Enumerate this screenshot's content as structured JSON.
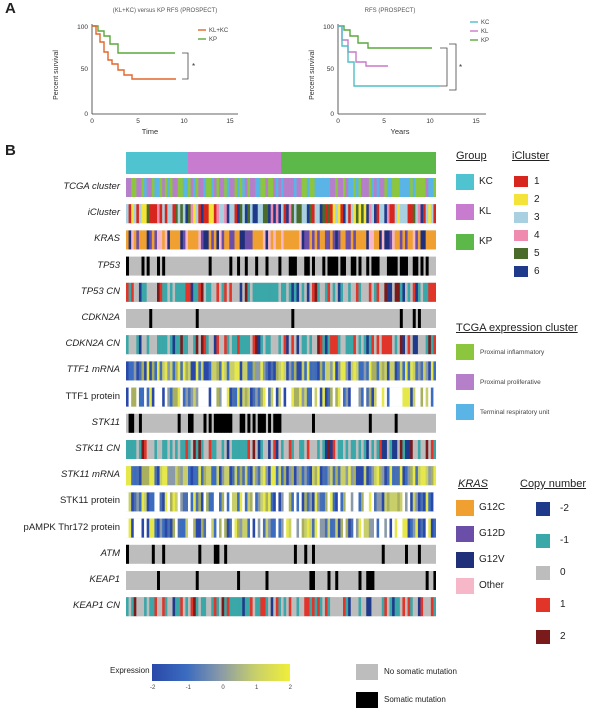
{
  "panel_a": {
    "letter": "A",
    "plot1": {
      "title": "(KL+KC) versus KP RFS (PROSPECT)",
      "ylabel": "Percent survival",
      "xlabel": "Time",
      "yticks": [
        "100",
        "50",
        "0"
      ],
      "xticks": [
        "0",
        "5",
        "10",
        "15"
      ],
      "legend": [
        "KL+KC",
        "KP"
      ],
      "sig": "*",
      "colors": {
        "KLKC": "#e2662a",
        "KP": "#5aa83e"
      }
    },
    "plot2": {
      "title": "RFS (PROSPECT)",
      "ylabel": "Percent survival",
      "xlabel": "Years",
      "yticks": [
        "100",
        "50",
        "0"
      ],
      "xticks": [
        "0",
        "5",
        "10",
        "15"
      ],
      "legend": [
        "KC",
        "KL",
        "KP"
      ],
      "sig": "*",
      "colors": {
        "KC": "#4fbfc8",
        "KL": "#c97ac9",
        "KP": "#5aa83e"
      }
    }
  },
  "panel_b": {
    "letter": "B",
    "rows": [
      "TCGA cluster",
      "iCluster",
      "KRAS",
      "TP53",
      "TP53 CN",
      "CDKN2A",
      "CDKN2A CN",
      "TTF1 mRNA",
      "TTF1 protein",
      "STK11",
      "STK11 CN",
      "STK11 mRNA",
      "STK11 protein",
      "pAMPK Thr172 protein",
      "ATM",
      "KEAP1",
      "KEAP1 CN"
    ],
    "group_bar": [
      {
        "label": "KC",
        "frac": 0.2,
        "color": "#4fc3d0"
      },
      {
        "label": "KL",
        "frac": 0.3,
        "color": "#c77ccf"
      },
      {
        "label": "KP",
        "frac": 0.5,
        "color": "#5db84a"
      }
    ],
    "legend_group": {
      "title": "Group",
      "items": [
        {
          "label": "KC",
          "color": "#4fc3d0"
        },
        {
          "label": "KL",
          "color": "#c77ccf"
        },
        {
          "label": "KP",
          "color": "#5db84a"
        }
      ]
    },
    "legend_icluster": {
      "title": "iCluster",
      "items": [
        {
          "label": "1",
          "color": "#d7261e"
        },
        {
          "label": "2",
          "color": "#f4e43a"
        },
        {
          "label": "3",
          "color": "#a8d0e0"
        },
        {
          "label": "4",
          "color": "#f08bb0"
        },
        {
          "label": "5",
          "color": "#4a6b2a"
        },
        {
          "label": "6",
          "color": "#1f3a8a"
        }
      ]
    },
    "legend_tcga": {
      "title": "TCGA expression cluster",
      "items": [
        {
          "label": "Proximal inflammatory",
          "color": "#8cc63f"
        },
        {
          "label": "Proximal proliferative",
          "color": "#b57fc9"
        },
        {
          "label": "Terminal respiratory unit",
          "color": "#5ab4e5"
        }
      ]
    },
    "legend_kras": {
      "title": "KRAS",
      "items": [
        {
          "label": "G12C",
          "color": "#f0a030"
        },
        {
          "label": "G12D",
          "color": "#6a4ea8"
        },
        {
          "label": "G12V",
          "color": "#1f2f7a"
        },
        {
          "label": "Other",
          "color": "#f6b8c8"
        }
      ]
    },
    "legend_cn": {
      "title": "Copy number",
      "items": [
        {
          "label": "-2",
          "color": "#1f3a8a"
        },
        {
          "label": "-1",
          "color": "#3aa7a8"
        },
        {
          "label": "0",
          "color": "#bdbdbd"
        },
        {
          "label": "1",
          "color": "#e2352a"
        },
        {
          "label": "2",
          "color": "#7a1a1a"
        }
      ]
    },
    "expression_scale": {
      "title": "Expression",
      "ticks": [
        "-2",
        "-1",
        "0",
        "1",
        "2"
      ]
    },
    "mutation_legend": [
      {
        "label": "No somatic mutation",
        "color": "#bdbdbd"
      },
      {
        "label": "Somatic mutation",
        "color": "#000000"
      }
    ]
  }
}
